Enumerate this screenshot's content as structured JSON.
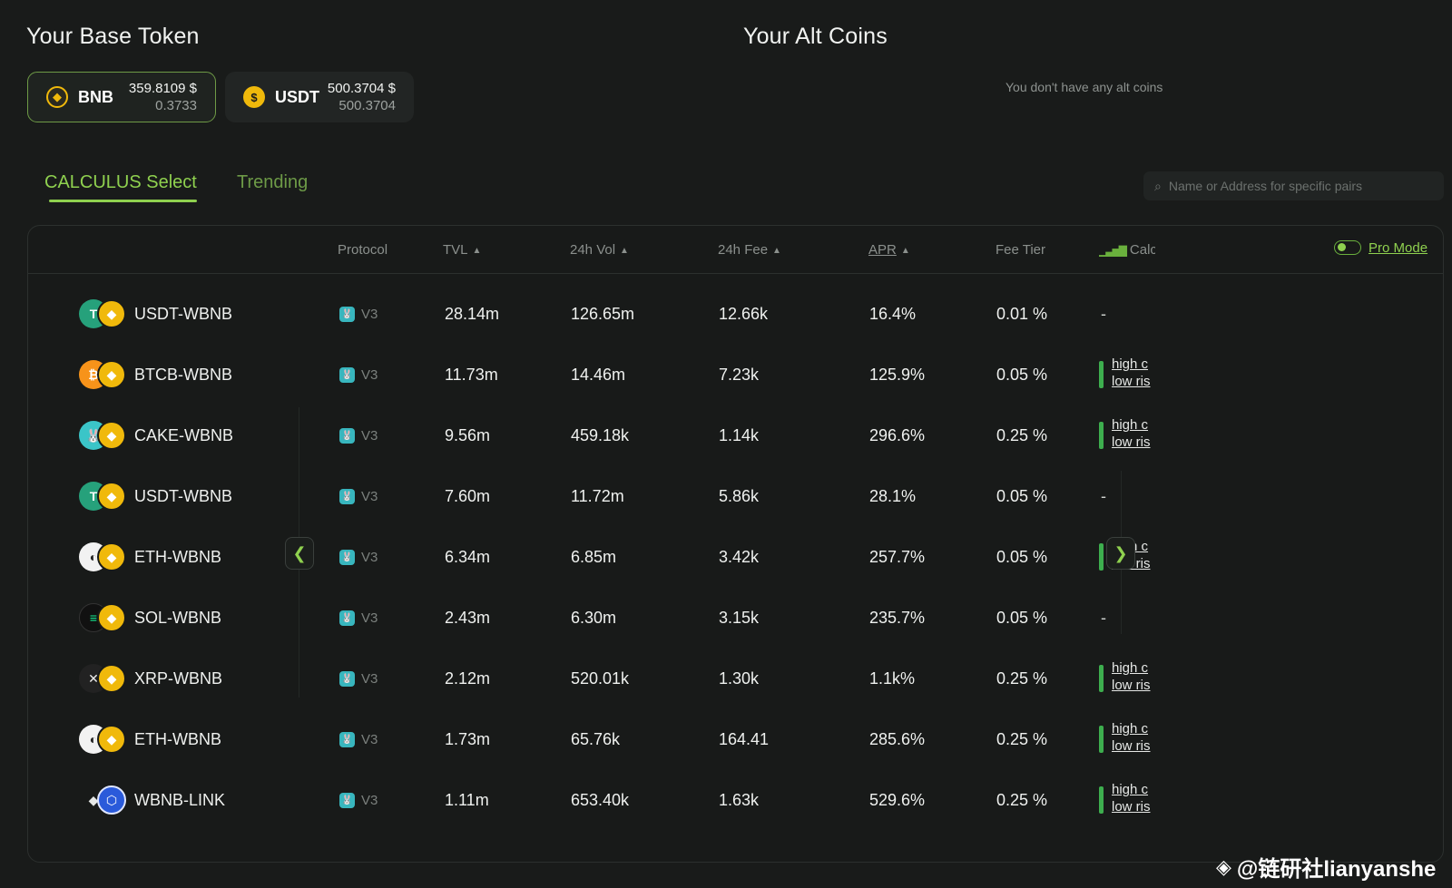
{
  "base": {
    "title": "Your Base Token",
    "tokens": [
      {
        "symbol": "BNB",
        "usd": "359.8109 $",
        "amount": "0.3733",
        "icon": "bnb-icon",
        "selected": true
      },
      {
        "symbol": "USDT",
        "usd": "500.3704 $",
        "amount": "500.3704",
        "icon": "usdt-icon",
        "selected": false
      }
    ]
  },
  "alt": {
    "title": "Your Alt Coins",
    "empty_text": "You don't have any alt coins"
  },
  "tabs": {
    "select": "CALCULUS Select",
    "trending": "Trending",
    "active": "select"
  },
  "search": {
    "placeholder": "Name or Address for specific pairs"
  },
  "table": {
    "headers": {
      "protocol": "Protocol",
      "tvl": "TVL",
      "vol": "24h Vol",
      "fee": "24h Fee",
      "apr": "APR",
      "tier": "Fee Tier",
      "calc": "Calculus"
    },
    "sort_arrow": "▲",
    "pro_mode": "Pro Mode",
    "rows": [
      {
        "pair": "USDT-WBNB",
        "icons": [
          "usdt",
          "bnb"
        ],
        "protocol": "V3",
        "tvl": "28.14m",
        "vol": "126.65m",
        "fee": "12.66k",
        "apr": "16.4%",
        "tier": "0.01 %",
        "calc": null
      },
      {
        "pair": "BTCB-WBNB",
        "icons": [
          "btcb",
          "bnb"
        ],
        "protocol": "V3",
        "tvl": "11.73m",
        "vol": "14.46m",
        "fee": "7.23k",
        "apr": "125.9%",
        "tier": "0.05 %",
        "calc": [
          "high c",
          "low ris"
        ]
      },
      {
        "pair": "CAKE-WBNB",
        "icons": [
          "cake",
          "bnb"
        ],
        "protocol": "V3",
        "tvl": "9.56m",
        "vol": "459.18k",
        "fee": "1.14k",
        "apr": "296.6%",
        "tier": "0.25 %",
        "calc": [
          "high c",
          "low ris"
        ]
      },
      {
        "pair": "USDT-WBNB",
        "icons": [
          "usdt",
          "bnb"
        ],
        "protocol": "V3",
        "tvl": "7.60m",
        "vol": "11.72m",
        "fee": "5.86k",
        "apr": "28.1%",
        "tier": "0.05 %",
        "calc": null
      },
      {
        "pair": "ETH-WBNB",
        "icons": [
          "eth",
          "bnb"
        ],
        "protocol": "V3",
        "tvl": "6.34m",
        "vol": "6.85m",
        "fee": "3.42k",
        "apr": "257.7%",
        "tier": "0.05 %",
        "calc": [
          "high c",
          "low ris"
        ]
      },
      {
        "pair": "SOL-WBNB",
        "icons": [
          "sol",
          "bnb"
        ],
        "protocol": "V3",
        "tvl": "2.43m",
        "vol": "6.30m",
        "fee": "3.15k",
        "apr": "235.7%",
        "tier": "0.05 %",
        "calc": null
      },
      {
        "pair": "XRP-WBNB",
        "icons": [
          "xrp",
          "bnb"
        ],
        "protocol": "V3",
        "tvl": "2.12m",
        "vol": "520.01k",
        "fee": "1.30k",
        "apr": "1.1k%",
        "tier": "0.25 %",
        "calc": [
          "high c",
          "low ris"
        ]
      },
      {
        "pair": "ETH-WBNB",
        "icons": [
          "eth",
          "bnb"
        ],
        "protocol": "V3",
        "tvl": "1.73m",
        "vol": "65.76k",
        "fee": "164.41",
        "apr": "285.6%",
        "tier": "0.25 %",
        "calc": [
          "high c",
          "low ris"
        ]
      },
      {
        "pair": "WBNB-LINK",
        "icons": [
          "bnb",
          "link"
        ],
        "protocol": "V3",
        "tvl": "1.11m",
        "vol": "653.40k",
        "fee": "1.63k",
        "apr": "529.6%",
        "tier": "0.25 %",
        "calc": [
          "high c",
          "low ris"
        ]
      }
    ],
    "empty_calc": "-"
  },
  "nav": {
    "left": "❮",
    "right": "❯"
  },
  "watermark": "@链研社lianyanshe",
  "colors": {
    "accent": "#8fd14f",
    "bg": "#191b1a",
    "bnb": "#f0b90b",
    "risk_bar": "#3dae4e"
  }
}
